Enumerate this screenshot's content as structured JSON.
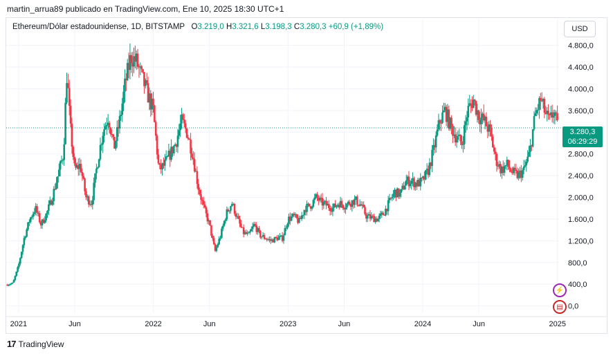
{
  "caption": "martin_arrua89 publicado en TradingView.com, Ene 10, 2025 18:30 UTC+1",
  "legend": {
    "symbol": "Ethereum/Dólar estadounidense, 1D, BITSTAMP",
    "open_label": "O",
    "open": "3.219,0",
    "high_label": "H",
    "high": "3.321,6",
    "low_label": "L",
    "low": "3.198,3",
    "close_label": "C",
    "close": "3.280,3",
    "change": "+60,9 (+1,89%)"
  },
  "currency": "USD",
  "price_tag": {
    "price": "3.280,3",
    "countdown": "06:29:29"
  },
  "icons": [
    "lightning-icon",
    "us-flag-icon"
  ],
  "brand": {
    "logo": "17",
    "name": "TradingView"
  },
  "colors": {
    "up": "#089981",
    "down": "#f23645",
    "grid": "#f0f3fa",
    "last_line": "#089981"
  },
  "chart_data": {
    "type": "candlestick",
    "title": "Ethereum/Dólar estadounidense, 1D, BITSTAMP",
    "y_ticks": [
      "0,0",
      "400,0",
      "800,0",
      "1.200,0",
      "1.600,0",
      "2.000,0",
      "2.400,0",
      "2.800,0",
      "3.200,0",
      "3.600,0",
      "4.000,0",
      "4.400,0",
      "4.800,0"
    ],
    "y_values": [
      0,
      400,
      800,
      1200,
      1600,
      2000,
      2400,
      2800,
      3200,
      3600,
      4000,
      4400,
      4800
    ],
    "ylim": [
      -120,
      5050
    ],
    "x_ticks": [
      "2021",
      "Jun",
      "2022",
      "Jun",
      "2023",
      "Jun",
      "2024",
      "Jun",
      "2025"
    ],
    "x_tick_months": [
      0,
      5,
      12,
      17,
      24,
      29,
      36,
      41,
      48
    ],
    "xlim_months": [
      -1.1,
      48.2
    ],
    "last_price": 3280.3,
    "price_path_monthly": [
      {
        "m": -1.0,
        "p": 390
      },
      {
        "m": -0.5,
        "p": 420
      },
      {
        "m": 0.0,
        "p": 740
      },
      {
        "m": 0.5,
        "p": 1250
      },
      {
        "m": 1.0,
        "p": 1600
      },
      {
        "m": 1.5,
        "p": 1800
      },
      {
        "m": 2.0,
        "p": 1500
      },
      {
        "m": 2.5,
        "p": 1700
      },
      {
        "m": 3.0,
        "p": 2000
      },
      {
        "m": 3.5,
        "p": 2400
      },
      {
        "m": 4.0,
        "p": 2800
      },
      {
        "m": 4.3,
        "p": 4300
      },
      {
        "m": 4.6,
        "p": 3300
      },
      {
        "m": 5.0,
        "p": 2500
      },
      {
        "m": 5.5,
        "p": 2600
      },
      {
        "m": 6.0,
        "p": 2000
      },
      {
        "m": 6.5,
        "p": 1900
      },
      {
        "m": 7.0,
        "p": 2600
      },
      {
        "m": 7.5,
        "p": 3200
      },
      {
        "m": 8.0,
        "p": 3500
      },
      {
        "m": 8.5,
        "p": 2900
      },
      {
        "m": 9.0,
        "p": 3400
      },
      {
        "m": 9.5,
        "p": 4100
      },
      {
        "m": 10.0,
        "p": 4600
      },
      {
        "m": 10.5,
        "p": 4500
      },
      {
        "m": 11.0,
        "p": 4200
      },
      {
        "m": 11.5,
        "p": 3900
      },
      {
        "m": 12.0,
        "p": 3600
      },
      {
        "m": 12.5,
        "p": 2500
      },
      {
        "m": 13.0,
        "p": 2600
      },
      {
        "m": 13.5,
        "p": 2800
      },
      {
        "m": 14.0,
        "p": 3000
      },
      {
        "m": 14.5,
        "p": 3400
      },
      {
        "m": 15.0,
        "p": 3200
      },
      {
        "m": 15.5,
        "p": 2800
      },
      {
        "m": 16.0,
        "p": 2200
      },
      {
        "m": 16.5,
        "p": 1800
      },
      {
        "m": 17.0,
        "p": 1500
      },
      {
        "m": 17.5,
        "p": 1000
      },
      {
        "m": 18.0,
        "p": 1300
      },
      {
        "m": 18.5,
        "p": 1700
      },
      {
        "m": 19.0,
        "p": 1900
      },
      {
        "m": 19.5,
        "p": 1600
      },
      {
        "m": 20.0,
        "p": 1350
      },
      {
        "m": 20.5,
        "p": 1300
      },
      {
        "m": 21.0,
        "p": 1500
      },
      {
        "m": 21.5,
        "p": 1300
      },
      {
        "m": 22.0,
        "p": 1250
      },
      {
        "m": 22.5,
        "p": 1200
      },
      {
        "m": 23.0,
        "p": 1250
      },
      {
        "m": 23.5,
        "p": 1250
      },
      {
        "m": 24.0,
        "p": 1600
      },
      {
        "m": 24.5,
        "p": 1650
      },
      {
        "m": 25.0,
        "p": 1550
      },
      {
        "m": 25.5,
        "p": 1800
      },
      {
        "m": 26.0,
        "p": 1850
      },
      {
        "m": 26.5,
        "p": 2000
      },
      {
        "m": 27.0,
        "p": 1900
      },
      {
        "m": 27.5,
        "p": 1850
      },
      {
        "m": 28.0,
        "p": 1800
      },
      {
        "m": 28.5,
        "p": 1900
      },
      {
        "m": 29.0,
        "p": 1850
      },
      {
        "m": 29.5,
        "p": 1900
      },
      {
        "m": 30.0,
        "p": 1950
      },
      {
        "m": 30.5,
        "p": 1850
      },
      {
        "m": 31.0,
        "p": 1650
      },
      {
        "m": 31.5,
        "p": 1620
      },
      {
        "m": 32.0,
        "p": 1600
      },
      {
        "m": 32.5,
        "p": 1700
      },
      {
        "m": 33.0,
        "p": 1900
      },
      {
        "m": 33.5,
        "p": 2100
      },
      {
        "m": 34.0,
        "p": 2050
      },
      {
        "m": 34.5,
        "p": 2300
      },
      {
        "m": 35.0,
        "p": 2300
      },
      {
        "m": 35.5,
        "p": 2250
      },
      {
        "m": 36.0,
        "p": 2300
      },
      {
        "m": 36.5,
        "p": 2500
      },
      {
        "m": 37.0,
        "p": 2900
      },
      {
        "m": 37.5,
        "p": 3400
      },
      {
        "m": 38.0,
        "p": 3600
      },
      {
        "m": 38.5,
        "p": 3300
      },
      {
        "m": 39.0,
        "p": 3100
      },
      {
        "m": 39.5,
        "p": 3000
      },
      {
        "m": 40.0,
        "p": 3600
      },
      {
        "m": 40.5,
        "p": 3800
      },
      {
        "m": 41.0,
        "p": 3500
      },
      {
        "m": 41.5,
        "p": 3400
      },
      {
        "m": 42.0,
        "p": 3200
      },
      {
        "m": 42.5,
        "p": 2700
      },
      {
        "m": 43.0,
        "p": 2500
      },
      {
        "m": 43.5,
        "p": 2600
      },
      {
        "m": 44.0,
        "p": 2450
      },
      {
        "m": 44.5,
        "p": 2400
      },
      {
        "m": 45.0,
        "p": 2500
      },
      {
        "m": 45.5,
        "p": 2800
      },
      {
        "m": 46.0,
        "p": 3500
      },
      {
        "m": 46.5,
        "p": 3800
      },
      {
        "m": 47.0,
        "p": 3500
      },
      {
        "m": 47.3,
        "p": 3400
      },
      {
        "m": 47.7,
        "p": 3600
      },
      {
        "m": 48.0,
        "p": 3280
      }
    ],
    "grid": true
  }
}
